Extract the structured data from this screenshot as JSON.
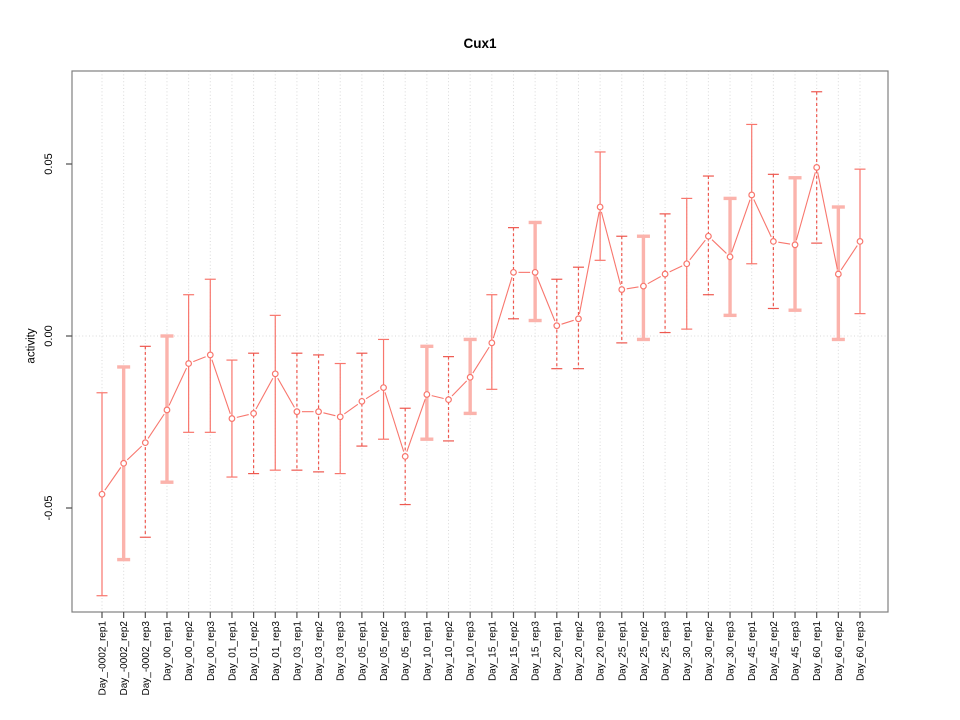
{
  "page": {
    "background": "#ffffff"
  },
  "chart_data": {
    "type": "scatter",
    "subtype": "points-with-error-bars",
    "title": "Cux1",
    "xlabel": "",
    "ylabel": "activity",
    "ylim": [
      -0.08,
      0.077
    ],
    "yticks": [
      -0.05,
      0.0,
      0.05
    ],
    "ytick_labels": [
      "-0.05",
      "0.00",
      "0.05"
    ],
    "grid": "dotted vertical line at every category; dotted horizontal line at y=0",
    "legend": "none",
    "categories": [
      "Day_-0002_rep1",
      "Day_-0002_rep2",
      "Day_-0002_rep3",
      "Day_00_rep1",
      "Day_00_rep2",
      "Day_00_rep3",
      "Day_01_rep1",
      "Day_01_rep2",
      "Day_01_rep3",
      "Day_03_rep1",
      "Day_03_rep2",
      "Day_03_rep3",
      "Day_05_rep1",
      "Day_05_rep2",
      "Day_05_rep3",
      "Day_10_rep1",
      "Day_10_rep2",
      "Day_10_rep3",
      "Day_15_rep1",
      "Day_15_rep2",
      "Day_15_rep3",
      "Day_20_rep1",
      "Day_20_rep2",
      "Day_20_rep3",
      "Day_25_rep1",
      "Day_25_rep2",
      "Day_25_rep3",
      "Day_30_rep1",
      "Day_30_rep2",
      "Day_30_rep3",
      "Day_45_rep1",
      "Day_45_rep2",
      "Day_45_rep3",
      "Day_60_rep1",
      "Day_60_rep2",
      "Day_60_rep3"
    ],
    "series": [
      {
        "name": "activity",
        "values": [
          -0.046,
          -0.037,
          -0.031,
          -0.0215,
          -0.008,
          -0.0055,
          -0.024,
          -0.0225,
          -0.011,
          -0.022,
          -0.022,
          -0.0235,
          -0.019,
          -0.015,
          -0.035,
          -0.017,
          -0.0185,
          -0.012,
          -0.002,
          0.0185,
          0.0185,
          0.003,
          0.005,
          0.0375,
          0.0135,
          0.0145,
          0.018,
          0.021,
          0.029,
          0.023,
          0.041,
          0.0275,
          0.0265,
          0.049,
          0.018,
          0.0275
        ],
        "error_low": [
          -0.0755,
          -0.065,
          -0.0585,
          -0.0425,
          -0.028,
          -0.028,
          -0.041,
          -0.04,
          -0.039,
          -0.039,
          -0.0395,
          -0.04,
          -0.032,
          -0.03,
          -0.049,
          -0.03,
          -0.0305,
          -0.0225,
          -0.0155,
          0.005,
          0.0045,
          -0.0095,
          -0.0095,
          0.022,
          -0.002,
          -0.001,
          0.001,
          0.002,
          0.012,
          0.006,
          0.021,
          0.008,
          0.0075,
          0.027,
          -0.001,
          0.0065
        ],
        "error_high": [
          -0.0165,
          -0.009,
          -0.003,
          0.0,
          0.012,
          0.0165,
          -0.007,
          -0.005,
          0.006,
          -0.005,
          -0.0055,
          -0.008,
          -0.005,
          -0.001,
          -0.021,
          -0.003,
          -0.006,
          -0.001,
          0.012,
          0.0315,
          0.033,
          0.0165,
          0.02,
          0.0535,
          0.029,
          0.029,
          0.0355,
          0.04,
          0.0465,
          0.04,
          0.0615,
          0.047,
          0.046,
          0.071,
          0.0375,
          0.0485
        ],
        "bar_styles": [
          "solid",
          "thick",
          "dashed",
          "thick",
          "solid",
          "solid",
          "solid",
          "dashed",
          "solid",
          "dashed",
          "dashed",
          "solid",
          "dashed",
          "solid",
          "dashed",
          "thick",
          "dashed",
          "thick",
          "solid",
          "dashed",
          "thick",
          "dashed",
          "dashed",
          "solid",
          "dashed",
          "thick",
          "dashed",
          "solid",
          "dashed",
          "thick",
          "solid",
          "dashed",
          "thick",
          "dashed",
          "thick",
          "solid"
        ]
      }
    ],
    "colors": {
      "point": "#f8766d",
      "line": "#f8766d",
      "error_bar_solid": "#f8766d",
      "error_bar_dashed": "#ee584f",
      "error_bar_thick": "#fbb3ac",
      "grid": "#d9d9d9",
      "frame": "#808080",
      "tick": "#4d4d4d",
      "text": "#000000"
    }
  }
}
